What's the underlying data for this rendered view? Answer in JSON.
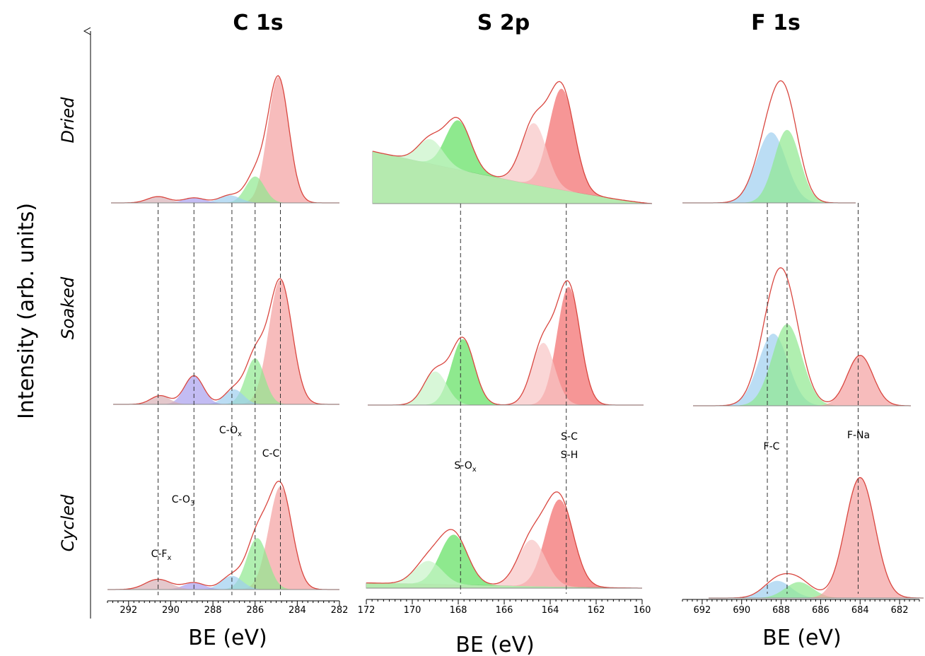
{
  "figure": {
    "ylabel": "Intensity (arb. units)",
    "rows": [
      "Dried",
      "Soaked",
      "Cycled"
    ]
  },
  "chart_data": [
    {
      "type": "area",
      "title": "C 1s",
      "xlabel": "BE (eV)",
      "xlim": [
        293,
        282
      ],
      "xticks": [
        292,
        290,
        288,
        286,
        284,
        282
      ],
      "component_colors": [
        "#f4a0a0",
        "#8fe88f",
        "#9ecff0",
        "#a9a0ee",
        "#d8b0b6"
      ],
      "annotations": [
        {
          "text": "C-C",
          "x": 284.8
        },
        {
          "text": "C-O",
          "sub": "x",
          "x": 287.1
        },
        {
          "text": "C-O",
          "sub": "3",
          "x": 288.9
        },
        {
          "text": "C-F",
          "sub": "x",
          "x": 290.6
        }
      ],
      "reference_lines": [
        290.6,
        288.9,
        287.1,
        286.0,
        284.8
      ],
      "rows": [
        {
          "name": "Dried",
          "components": [
            {
              "center": 284.9,
              "height": 1.0,
              "width": 0.5
            },
            {
              "center": 286.0,
              "height": 0.21,
              "width": 0.45
            },
            {
              "center": 287.2,
              "height": 0.06,
              "width": 0.5
            },
            {
              "center": 288.9,
              "height": 0.04,
              "width": 0.5
            },
            {
              "center": 290.6,
              "height": 0.05,
              "width": 0.5
            }
          ]
        },
        {
          "name": "Soaked",
          "components": [
            {
              "center": 284.8,
              "height": 1.0,
              "width": 0.55
            },
            {
              "center": 286.0,
              "height": 0.37,
              "width": 0.45
            },
            {
              "center": 287.0,
              "height": 0.12,
              "width": 0.45
            },
            {
              "center": 288.9,
              "height": 0.23,
              "width": 0.45
            },
            {
              "center": 290.5,
              "height": 0.07,
              "width": 0.45
            }
          ]
        },
        {
          "name": "Cycled",
          "components": [
            {
              "center": 284.8,
              "height": 0.9,
              "width": 0.55
            },
            {
              "center": 285.9,
              "height": 0.45,
              "width": 0.5
            },
            {
              "center": 287.1,
              "height": 0.12,
              "width": 0.5
            },
            {
              "center": 288.9,
              "height": 0.06,
              "width": 0.5
            },
            {
              "center": 290.6,
              "height": 0.09,
              "width": 0.6
            }
          ]
        }
      ]
    },
    {
      "type": "area",
      "title": "S 2p",
      "xlabel": "BE (eV)",
      "xlim": [
        172,
        160
      ],
      "xticks": [
        172,
        170,
        168,
        166,
        164,
        162,
        160
      ],
      "component_colors": [
        "#f26a6a",
        "#f8c4c4",
        "#5ee05e",
        "#c8f4c8"
      ],
      "annotations": [
        {
          "text": "S-C",
          "x": 163.3,
          "line": 1
        },
        {
          "text": "S-H",
          "x": 163.3,
          "line": 2
        },
        {
          "text": "S-O",
          "sub": "x",
          "x": 167.9
        }
      ],
      "reference_lines": [
        167.9,
        163.3
      ],
      "rows": [
        {
          "name": "Dried",
          "background_start": 0.47,
          "components": [
            {
              "center": 163.5,
              "height": 0.82,
              "width": 0.55
            },
            {
              "center": 164.7,
              "height": 0.5,
              "width": 0.55
            },
            {
              "center": 168.0,
              "height": 0.4,
              "width": 0.55
            },
            {
              "center": 169.2,
              "height": 0.2,
              "width": 0.55
            }
          ]
        },
        {
          "name": "Soaked",
          "background_start": 0.0,
          "components": [
            {
              "center": 163.2,
              "height": 0.95,
              "width": 0.5
            },
            {
              "center": 164.3,
              "height": 0.5,
              "width": 0.5
            },
            {
              "center": 167.8,
              "height": 0.53,
              "width": 0.5
            },
            {
              "center": 169.0,
              "height": 0.27,
              "width": 0.5
            }
          ]
        },
        {
          "name": "Cycled",
          "background_start": 0.05,
          "components": [
            {
              "center": 163.6,
              "height": 0.75,
              "width": 0.6
            },
            {
              "center": 164.8,
              "height": 0.4,
              "width": 0.6
            },
            {
              "center": 168.2,
              "height": 0.43,
              "width": 0.6
            },
            {
              "center": 169.3,
              "height": 0.2,
              "width": 0.6
            }
          ]
        }
      ]
    },
    {
      "type": "area",
      "title": "F 1s",
      "xlabel": "BE (eV)",
      "xlim": [
        693,
        681
      ],
      "xticks": [
        692,
        690,
        688,
        686,
        684,
        682
      ],
      "component_colors": [
        "#9ecff0",
        "#8fe88f",
        "#f4a0a0"
      ],
      "annotations": [
        {
          "text": "F-C",
          "x": 688.2
        },
        {
          "text": "F-Na",
          "x": 684.0
        }
      ],
      "reference_lines": [
        688.7,
        687.7,
        684.1
      ],
      "rows": [
        {
          "name": "Dried",
          "components": [
            {
              "center": 688.5,
              "height": 0.58,
              "width": 0.75
            },
            {
              "center": 687.7,
              "height": 0.6,
              "width": 0.65
            }
          ]
        },
        {
          "name": "Soaked",
          "components": [
            {
              "center": 688.4,
              "height": 0.6,
              "width": 0.75
            },
            {
              "center": 687.7,
              "height": 0.68,
              "width": 0.75
            },
            {
              "center": 684.0,
              "height": 0.42,
              "width": 0.65
            }
          ]
        },
        {
          "name": "Cycled",
          "components": [
            {
              "center": 688.2,
              "height": 0.14,
              "width": 0.7
            },
            {
              "center": 687.1,
              "height": 0.13,
              "width": 0.7
            },
            {
              "center": 684.0,
              "height": 0.98,
              "width": 0.75
            }
          ]
        }
      ]
    }
  ]
}
